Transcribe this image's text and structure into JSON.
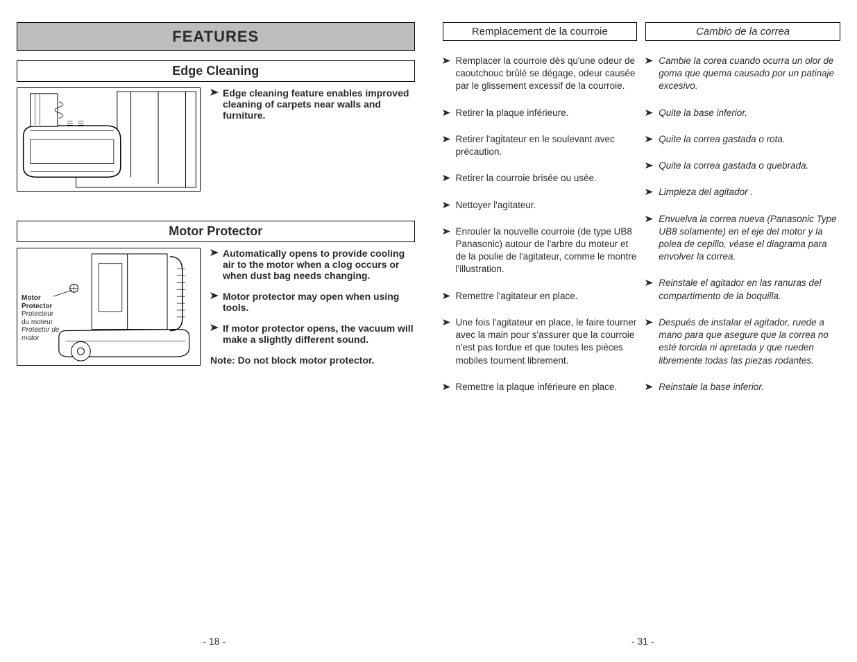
{
  "colors": {
    "banner_bg": "#bdbdbd",
    "border": "#000000",
    "text": "#2a2a2a"
  },
  "left": {
    "banner": "FEATURES",
    "page_number": "- 18 -",
    "sections": [
      {
        "title": "Edge Cleaning",
        "illustration_labels": [],
        "bullets": [
          "Edge cleaning feature enables improved cleaning of carpets near walls and furniture."
        ],
        "note": null
      },
      {
        "title": "Motor Protector",
        "illustration_labels": [
          {
            "en": "Motor Protector",
            "fr": "Protecteur du moteur",
            "es": "Protector de motor"
          }
        ],
        "bullets": [
          "Automatically opens to provide cooling air to the motor when a clog occurs or when dust bag needs changing.",
          "Motor protector may open when using tools.",
          "If motor protector opens, the vacuum will make a slightly different sound."
        ],
        "note": "Note: Do not block motor protector."
      }
    ]
  },
  "right": {
    "page_number": "- 31 -",
    "columns": [
      {
        "title": "Remplacement de la courroie",
        "italic": false,
        "bullets": [
          "Remplacer la courroie dès qu'une odeur de caoutchouc brûlé se dégage, odeur causée par le glissement excessif de la courroie.",
          "Retirer la plaque inférieure.",
          "Retirer l'agitateur en le soulevant avec précaution.",
          "Retirer la courroie brisée ou usée.",
          "Nettoyer l'agitateur.",
          "Enrouler la nouvelle courroie (de type UB8 Panasonic) autour de l'arbre du moteur et de la poulie de l'agitateur, comme le montre l'illustration.",
          "Remettre l'agitateur en place.",
          "Une fois l'agitateur en place, le faire tourner avec la main pour s'assurer que la courroie n'est pas tordue et que toutes les pièces mobiles tournent librement.",
          "Remettre la plaque inférieure en place."
        ]
      },
      {
        "title": "Cambio de la correa",
        "italic": true,
        "bullets": [
          "Cambie la corea cuando ocurra un olor de goma que quema causado por un patinaje excesivo.",
          "Quite la base inferior.",
          "Quite la correa gastada o rota.",
          "Quite la correa gastada o quebrada.",
          "Limpieza del agitador .",
          "Envuelva la correa nueva (Panasonic Type UB8 solamente) en el eje del motor y la polea de cepillo, véase el diagrama  para envolver la correa.",
          "Reinstale el agitador en las ranuras del compartimento de la boquilla.",
          "Después de instalar el agitador, ruede a mano para que asegure que la correa no esté torcida ni apretada y que rueden libremente todas las piezas rodantes.",
          "Reinstale la base inferior."
        ]
      }
    ]
  }
}
